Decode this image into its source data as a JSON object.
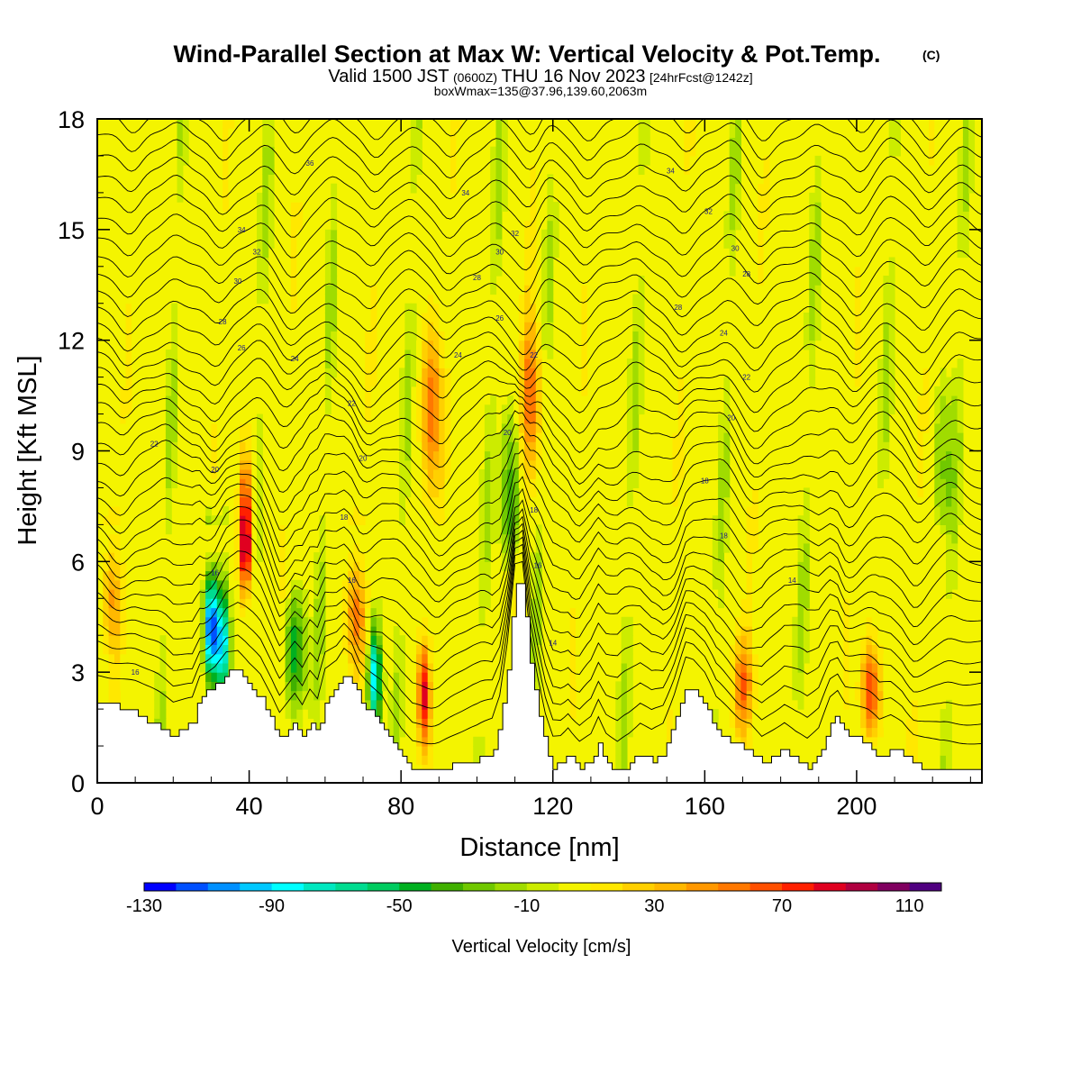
{
  "header": {
    "title": "Wind-Parallel Section at Max W: Vertical Velocity & Pot.Temp.",
    "title_mark": "(C)",
    "valid_a": "Valid 1500 JST",
    "valid_utc": "(0600Z)",
    "valid_b": "THU 16 Nov 2023",
    "forecast": "[24hrFcst@1242z]",
    "boxwmax": "boxWmax=135@37.96,139.60,2063m"
  },
  "chart_data": {
    "type": "heatmap",
    "title": "Wind-Parallel Section at Max W: Vertical Velocity & Pot.Temp.",
    "xlabel": "Distance [nm]",
    "ylabel": "Height [Kft MSL]",
    "xlim": [
      0,
      233
    ],
    "ylim": [
      0,
      18
    ],
    "x_ticks": [
      0,
      40,
      80,
      120,
      160,
      200
    ],
    "y_ticks": [
      0,
      3,
      6,
      9,
      12,
      15,
      18
    ],
    "colorbar": {
      "label": "Vertical Velocity [cm/s]",
      "tick_values": [
        -130,
        -90,
        -50,
        -10,
        30,
        70,
        110
      ],
      "bin_edges": [
        -130,
        -120,
        -110,
        -100,
        -90,
        -80,
        -70,
        -60,
        -50,
        -40,
        -30,
        -20,
        -10,
        0,
        10,
        20,
        30,
        40,
        50,
        60,
        70,
        80,
        90,
        100,
        110,
        120
      ],
      "colors": [
        "#0000ff",
        "#0050ff",
        "#0090ff",
        "#00c8ff",
        "#00ffff",
        "#00e8c0",
        "#00dc90",
        "#00cc60",
        "#00b020",
        "#40b000",
        "#70c800",
        "#a0dc00",
        "#ccec00",
        "#f4f400",
        "#ffe800",
        "#ffd000",
        "#ffb800",
        "#ff9800",
        "#ff7800",
        "#ff5000",
        "#ff2000",
        "#e00020",
        "#b00040",
        "#800060",
        "#500080"
      ]
    },
    "max_w": {
      "value": 135,
      "lat": 37.96,
      "lon": 139.6,
      "height_m": 2063
    },
    "terrain_kft": [
      [
        0,
        2.2
      ],
      [
        5,
        2.1
      ],
      [
        10,
        1.9
      ],
      [
        15,
        1.6
      ],
      [
        20,
        1.3
      ],
      [
        25,
        1.6
      ],
      [
        27,
        2.3
      ],
      [
        31,
        2.6
      ],
      [
        34,
        3.0
      ],
      [
        37,
        3.0
      ],
      [
        40,
        2.6
      ],
      [
        43,
        2.3
      ],
      [
        46,
        1.7
      ],
      [
        48,
        1.2
      ],
      [
        50,
        1.4
      ],
      [
        52,
        1.6
      ],
      [
        54,
        1.2
      ],
      [
        56,
        1.6
      ],
      [
        58,
        1.3
      ],
      [
        60,
        2.2
      ],
      [
        63,
        2.5
      ],
      [
        65,
        2.9
      ],
      [
        67,
        2.8
      ],
      [
        69,
        2.3
      ],
      [
        72,
        1.9
      ],
      [
        75,
        1.6
      ],
      [
        77,
        1.2
      ],
      [
        80,
        0.7
      ],
      [
        83,
        0.4
      ],
      [
        86,
        0.4
      ],
      [
        90,
        0.4
      ],
      [
        95,
        0.5
      ],
      [
        100,
        0.6
      ],
      [
        104,
        0.8
      ],
      [
        106,
        1.5
      ],
      [
        108,
        3.1
      ],
      [
        110,
        5.4
      ],
      [
        112,
        5.4
      ],
      [
        114,
        3.2
      ],
      [
        116,
        2.0
      ],
      [
        118,
        1.0
      ],
      [
        120,
        0.4
      ],
      [
        122,
        0.5
      ],
      [
        124,
        0.8
      ],
      [
        127,
        0.4
      ],
      [
        130,
        0.6
      ],
      [
        132,
        1.1
      ],
      [
        134,
        0.6
      ],
      [
        137,
        0.3
      ],
      [
        140,
        0.5
      ],
      [
        143,
        0.8
      ],
      [
        146,
        0.6
      ],
      [
        149,
        0.8
      ],
      [
        152,
        1.6
      ],
      [
        155,
        2.6
      ],
      [
        157,
        2.5
      ],
      [
        160,
        2.1
      ],
      [
        163,
        1.4
      ],
      [
        166,
        1.2
      ],
      [
        169,
        1.0
      ],
      [
        172,
        0.9
      ],
      [
        175,
        0.5
      ],
      [
        178,
        0.7
      ],
      [
        181,
        0.9
      ],
      [
        184,
        0.6
      ],
      [
        187,
        0.4
      ],
      [
        190,
        0.7
      ],
      [
        193,
        1.6
      ],
      [
        195,
        1.8
      ],
      [
        197,
        1.4
      ],
      [
        200,
        1.2
      ],
      [
        203,
        1.0
      ],
      [
        206,
        0.7
      ],
      [
        209,
        0.9
      ],
      [
        212,
        0.8
      ],
      [
        215,
        0.5
      ],
      [
        218,
        0.4
      ],
      [
        222,
        0.3
      ],
      [
        225,
        0.3
      ],
      [
        229,
        0.3
      ],
      [
        233,
        0.3
      ]
    ],
    "vertical_velocity_features": [
      {
        "x": 4,
        "z": 5.0,
        "w": 40
      },
      {
        "x": 30,
        "z": 4.2,
        "w": -130
      },
      {
        "x": 33,
        "z": 3.8,
        "w": -100
      },
      {
        "x": 39,
        "z": 6.5,
        "w": 110
      },
      {
        "x": 52,
        "z": 3.6,
        "w": -50
      },
      {
        "x": 68,
        "z": 4.6,
        "w": 50
      },
      {
        "x": 73,
        "z": 2.8,
        "w": -90
      },
      {
        "x": 86,
        "z": 2.4,
        "w": 90
      },
      {
        "x": 88,
        "z": 10.2,
        "w": 60
      },
      {
        "x": 109,
        "z": 7.5,
        "w": -40
      },
      {
        "x": 114,
        "z": 10.5,
        "w": 60
      },
      {
        "x": 170,
        "z": 2.6,
        "w": 60
      },
      {
        "x": 204,
        "z": 2.5,
        "w": 80
      },
      {
        "x": 223,
        "z": 8.6,
        "w": -20
      }
    ],
    "theta_contours": {
      "interval_c": 1,
      "labels": [
        {
          "x": 10,
          "z": 3.0,
          "text": "16"
        },
        {
          "x": 31,
          "z": 5.7,
          "text": "16"
        },
        {
          "x": 67,
          "z": 5.5,
          "text": "16"
        },
        {
          "x": 65,
          "z": 7.2,
          "text": "18"
        },
        {
          "x": 116,
          "z": 5.9,
          "text": "16"
        },
        {
          "x": 120,
          "z": 3.8,
          "text": "14"
        },
        {
          "x": 115,
          "z": 7.4,
          "text": "18"
        },
        {
          "x": 165,
          "z": 6.7,
          "text": "18"
        },
        {
          "x": 183,
          "z": 5.5,
          "text": "14"
        },
        {
          "x": 160,
          "z": 8.2,
          "text": "18"
        },
        {
          "x": 15,
          "z": 9.2,
          "text": "22"
        },
        {
          "x": 31,
          "z": 8.5,
          "text": "20"
        },
        {
          "x": 70,
          "z": 8.8,
          "text": "20"
        },
        {
          "x": 108,
          "z": 9.5,
          "text": "20"
        },
        {
          "x": 167,
          "z": 9.9,
          "text": "20"
        },
        {
          "x": 38,
          "z": 11.8,
          "text": "26"
        },
        {
          "x": 52,
          "z": 11.5,
          "text": "24"
        },
        {
          "x": 67,
          "z": 10.3,
          "text": "22"
        },
        {
          "x": 95,
          "z": 11.6,
          "text": "24"
        },
        {
          "x": 115,
          "z": 11.6,
          "text": "22"
        },
        {
          "x": 165,
          "z": 12.2,
          "text": "24"
        },
        {
          "x": 171,
          "z": 11.0,
          "text": "22"
        },
        {
          "x": 33,
          "z": 12.5,
          "text": "28"
        },
        {
          "x": 37,
          "z": 13.6,
          "text": "30"
        },
        {
          "x": 42,
          "z": 14.4,
          "text": "32"
        },
        {
          "x": 38,
          "z": 15.0,
          "text": "34"
        },
        {
          "x": 100,
          "z": 13.7,
          "text": "28"
        },
        {
          "x": 106,
          "z": 12.6,
          "text": "26"
        },
        {
          "x": 106,
          "z": 14.4,
          "text": "30"
        },
        {
          "x": 110,
          "z": 14.9,
          "text": "32"
        },
        {
          "x": 153,
          "z": 12.9,
          "text": "28"
        },
        {
          "x": 171,
          "z": 13.8,
          "text": "28"
        },
        {
          "x": 168,
          "z": 14.5,
          "text": "30"
        },
        {
          "x": 161,
          "z": 15.5,
          "text": "32"
        },
        {
          "x": 56,
          "z": 16.8,
          "text": "36"
        },
        {
          "x": 97,
          "z": 16.0,
          "text": "34"
        },
        {
          "x": 151,
          "z": 16.6,
          "text": "34"
        }
      ]
    }
  }
}
